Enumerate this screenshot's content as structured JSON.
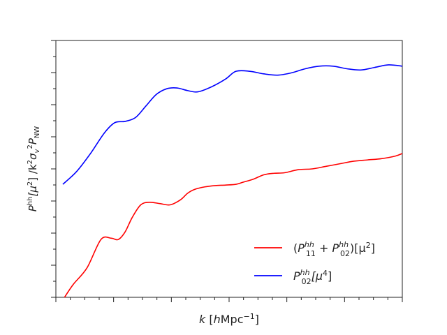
{
  "chart_data": {
    "type": "line",
    "xlabel_parts": {
      "var": "k",
      "open": " [",
      "h": "h",
      "unit": "Mpc",
      "exp": "−1",
      "close": "]"
    },
    "ylabel_parts": {
      "p": "P",
      "hh": "hh",
      "mu": "[μ",
      "two": "2",
      "slash": "] /k",
      "two2": "2",
      "sigma": "σ",
      "v": "v",
      "two3": "2",
      "p2": "P",
      "nw": "NW"
    },
    "xlim": [
      0,
      1
    ],
    "ylim": [
      0,
      1
    ],
    "grid": false,
    "legend_position": "lower-right",
    "tick_labels_shown": false,
    "series": [
      {
        "legend": {
          "lp": "(",
          "p1": "P",
          "sup1": "hh",
          "sub1": "11",
          "plus": " + ",
          "p2": "P",
          "sup2": "hh",
          "sub2": "02",
          "mid": ")[μ",
          "exp": "2",
          "end": "]"
        },
        "color": "#ff0000",
        "x": [
          0.025,
          0.05,
          0.09,
          0.13,
          0.16,
          0.18,
          0.2,
          0.22,
          0.245,
          0.27,
          0.3,
          0.33,
          0.36,
          0.38,
          0.4,
          0.43,
          0.46,
          0.49,
          0.52,
          0.54,
          0.57,
          0.6,
          0.63,
          0.66,
          0.7,
          0.74,
          0.78,
          0.82,
          0.86,
          0.9,
          0.94,
          0.98,
          1.0
        ],
        "y": [
          0.0,
          0.05,
          0.115,
          0.225,
          0.23,
          0.225,
          0.255,
          0.31,
          0.36,
          0.37,
          0.365,
          0.36,
          0.38,
          0.405,
          0.42,
          0.43,
          0.435,
          0.437,
          0.44,
          0.448,
          0.46,
          0.477,
          0.483,
          0.485,
          0.497,
          0.5,
          0.51,
          0.52,
          0.53,
          0.535,
          0.54,
          0.55,
          0.56
        ]
      },
      {
        "legend": {
          "p": "P",
          "sup": "hh",
          "sub": "02",
          "mid": "[μ",
          "exp": "4",
          "end": "]"
        },
        "color": "#0000ff",
        "x": [
          0.02,
          0.06,
          0.1,
          0.14,
          0.17,
          0.2,
          0.23,
          0.26,
          0.29,
          0.32,
          0.35,
          0.38,
          0.41,
          0.45,
          0.49,
          0.52,
          0.56,
          0.6,
          0.64,
          0.68,
          0.72,
          0.76,
          0.8,
          0.84,
          0.88,
          0.92,
          0.96,
          1.0
        ],
        "y": [
          0.44,
          0.49,
          0.56,
          0.64,
          0.68,
          0.685,
          0.7,
          0.745,
          0.79,
          0.812,
          0.815,
          0.805,
          0.8,
          0.82,
          0.85,
          0.88,
          0.88,
          0.87,
          0.865,
          0.874,
          0.89,
          0.9,
          0.9,
          0.89,
          0.885,
          0.895,
          0.905,
          0.9
        ]
      }
    ]
  }
}
